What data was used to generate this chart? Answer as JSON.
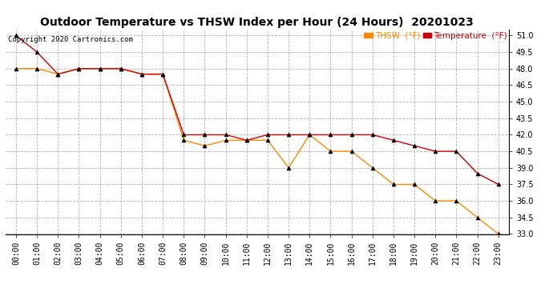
{
  "title": "Outdoor Temperature vs THSW Index per Hour (24 Hours)  20201023",
  "copyright": "Copyright 2020 Cartronics.com",
  "hours": [
    "00:00",
    "01:00",
    "02:00",
    "03:00",
    "04:00",
    "05:00",
    "06:00",
    "07:00",
    "08:00",
    "09:00",
    "10:00",
    "11:00",
    "12:00",
    "13:00",
    "14:00",
    "15:00",
    "16:00",
    "17:00",
    "18:00",
    "19:00",
    "20:00",
    "21:00",
    "22:00",
    "23:00"
  ],
  "thsw": [
    48.0,
    48.0,
    47.5,
    48.0,
    48.0,
    48.0,
    47.5,
    47.5,
    41.5,
    41.0,
    41.5,
    41.5,
    41.5,
    39.0,
    42.0,
    40.5,
    40.5,
    39.0,
    37.5,
    37.5,
    36.0,
    36.0,
    34.5,
    33.0
  ],
  "temperature": [
    51.0,
    49.5,
    47.5,
    48.0,
    48.0,
    48.0,
    47.5,
    47.5,
    42.0,
    42.0,
    42.0,
    41.5,
    42.0,
    42.0,
    42.0,
    42.0,
    42.0,
    42.0,
    41.5,
    41.0,
    40.5,
    40.5,
    38.5,
    37.5
  ],
  "thsw_color": "#ff8800",
  "temperature_color": "#cc0000",
  "background_color": "#ffffff",
  "grid_color": "#aaaaaa",
  "ylim": [
    33.0,
    51.5
  ],
  "yticks": [
    33.0,
    34.5,
    36.0,
    37.5,
    39.0,
    40.5,
    42.0,
    43.5,
    45.0,
    46.5,
    48.0,
    49.5,
    51.0
  ],
  "title_fontsize": 10,
  "label_fontsize": 8,
  "tick_fontsize": 7,
  "legend_thsw": "THSW  (°F)",
  "legend_temp": "Temperature  (°F)"
}
